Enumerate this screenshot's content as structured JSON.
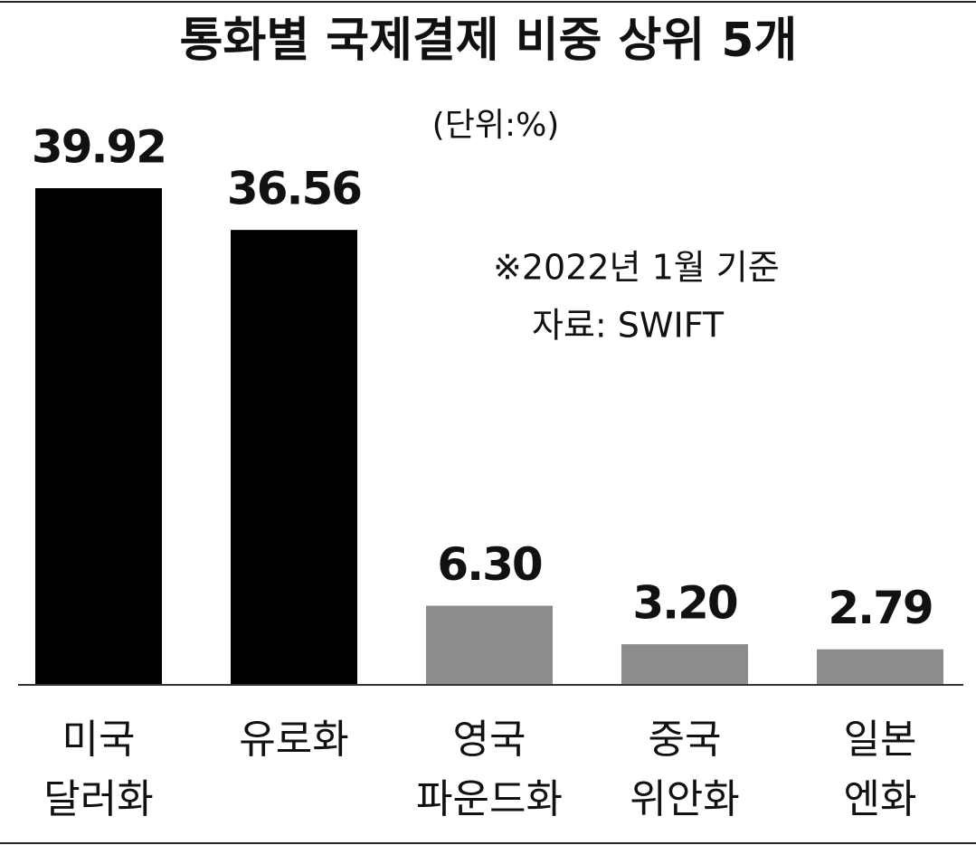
{
  "chart_data": {
    "type": "bar",
    "title": "통화별 국제결제 비중 상위 5개",
    "subtitle": "(단위:%)",
    "annotations": [
      "※2022년 1월 기준",
      "자료: SWIFT"
    ],
    "categories": [
      [
        "미국",
        "달러화"
      ],
      [
        "유로화"
      ],
      [
        "영국",
        "파운드화"
      ],
      [
        "중국",
        "위안화"
      ],
      [
        "일본",
        "엔화"
      ]
    ],
    "values": [
      39.92,
      36.56,
      6.3,
      3.2,
      2.79
    ],
    "value_labels": [
      "39.92",
      "36.56",
      "6.30",
      "3.20",
      "2.79"
    ],
    "colors": [
      "#000000",
      "#000000",
      "#8c8c8c",
      "#8c8c8c",
      "#8c8c8c"
    ]
  }
}
